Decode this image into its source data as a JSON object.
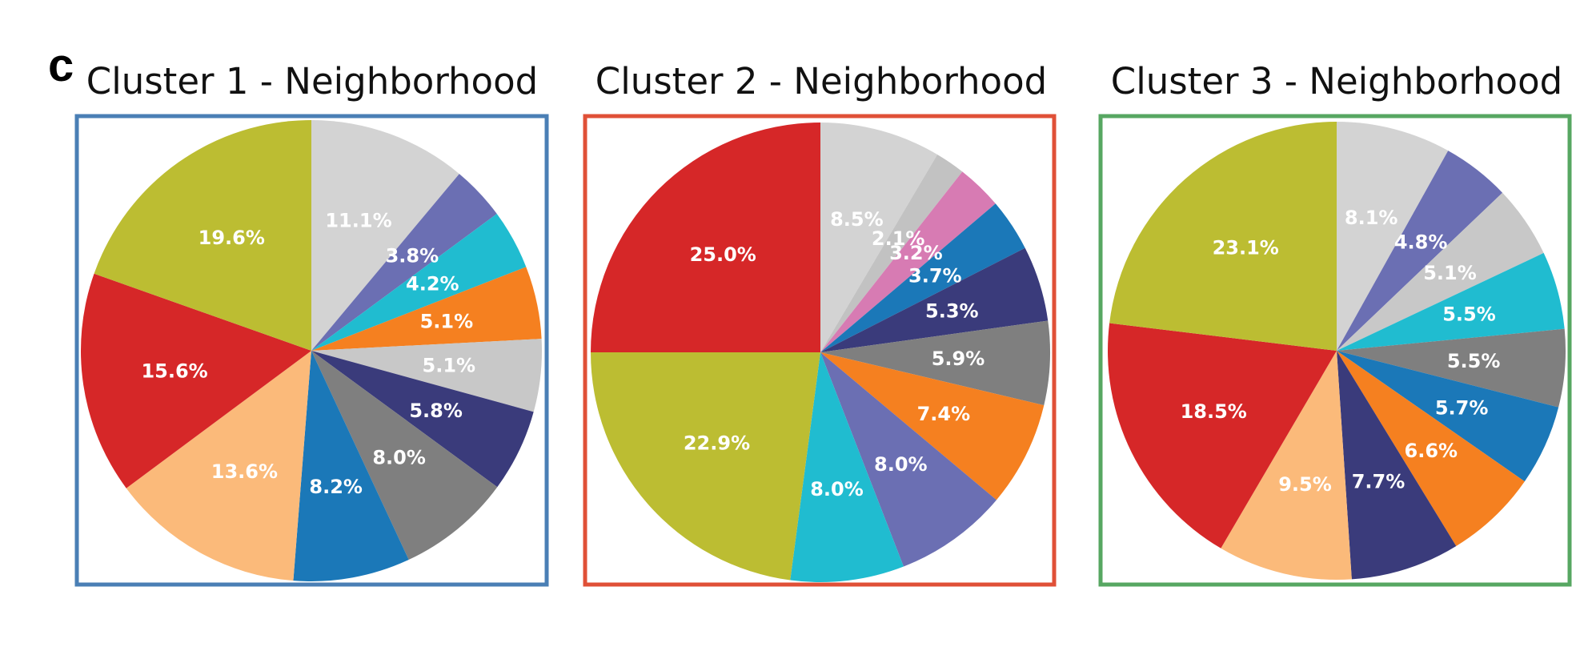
{
  "panel_label": "c",
  "chart_data": [
    {
      "type": "pie",
      "title": "Cluster 1 - Neighborhood",
      "frame_color": "#4a7fb5",
      "start_angle_deg": 90,
      "direction": "clockwise",
      "slices": [
        {
          "value": 11.1,
          "label": "11.1%",
          "color": "#d3d3d3"
        },
        {
          "value": 3.8,
          "label": "3.8%",
          "color": "#6b6fb3"
        },
        {
          "value": 4.2,
          "label": "4.2%",
          "color": "#20bcd0"
        },
        {
          "value": 5.1,
          "label": "5.1%",
          "color": "#f58020"
        },
        {
          "value": 5.1,
          "label": "5.1%",
          "color": "#c8c8c8"
        },
        {
          "value": 5.8,
          "label": "5.8%",
          "color": "#3a3b7b"
        },
        {
          "value": 8.0,
          "label": "8.0%",
          "color": "#7f7f7f"
        },
        {
          "value": 8.2,
          "label": "8.2%",
          "color": "#1b78b8"
        },
        {
          "value": 13.6,
          "label": "13.6%",
          "color": "#fbba7a"
        },
        {
          "value": 15.6,
          "label": "15.6%",
          "color": "#d62728"
        },
        {
          "value": 19.6,
          "label": "19.6%",
          "color": "#bcbd32"
        }
      ]
    },
    {
      "type": "pie",
      "title": "Cluster 2 - Neighborhood",
      "frame_color": "#e05037",
      "start_angle_deg": 90,
      "direction": "clockwise",
      "slices": [
        {
          "value": 8.5,
          "label": "8.5%",
          "color": "#d3d3d3"
        },
        {
          "value": 2.1,
          "label": "2.1%",
          "color": "#c2c2c2"
        },
        {
          "value": 3.2,
          "label": "3.2%",
          "color": "#d77bb3"
        },
        {
          "value": 3.7,
          "label": "3.7%",
          "color": "#1b78b8"
        },
        {
          "value": 5.3,
          "label": "5.3%",
          "color": "#3a3b7b"
        },
        {
          "value": 5.9,
          "label": "5.9%",
          "color": "#7f7f7f"
        },
        {
          "value": 7.4,
          "label": "7.4%",
          "color": "#f58020"
        },
        {
          "value": 8.0,
          "label": "8.0%",
          "color": "#6b6fb3"
        },
        {
          "value": 8.0,
          "label": "8.0%",
          "color": "#20bcd0"
        },
        {
          "value": 22.9,
          "label": "22.9%",
          "color": "#bcbd32"
        },
        {
          "value": 25.0,
          "label": "25.0%",
          "color": "#d62728"
        }
      ]
    },
    {
      "type": "pie",
      "title": "Cluster 3 - Neighborhood",
      "frame_color": "#57a762",
      "start_angle_deg": 90,
      "direction": "clockwise",
      "slices": [
        {
          "value": 8.1,
          "label": "8.1%",
          "color": "#d3d3d3"
        },
        {
          "value": 4.8,
          "label": "4.8%",
          "color": "#6b6fb3"
        },
        {
          "value": 5.1,
          "label": "5.1%",
          "color": "#c8c8c8"
        },
        {
          "value": 5.5,
          "label": "5.5%",
          "color": "#20bcd0"
        },
        {
          "value": 5.5,
          "label": "5.5%",
          "color": "#7f7f7f"
        },
        {
          "value": 5.7,
          "label": "5.7%",
          "color": "#1b78b8"
        },
        {
          "value": 6.6,
          "label": "6.6%",
          "color": "#f58020"
        },
        {
          "value": 7.7,
          "label": "7.7%",
          "color": "#3a3b7b"
        },
        {
          "value": 9.5,
          "label": "9.5%",
          "color": "#fbba7a"
        },
        {
          "value": 18.5,
          "label": "18.5%",
          "color": "#d62728"
        },
        {
          "value": 23.1,
          "label": "23.1%",
          "color": "#bcbd32"
        }
      ]
    }
  ]
}
